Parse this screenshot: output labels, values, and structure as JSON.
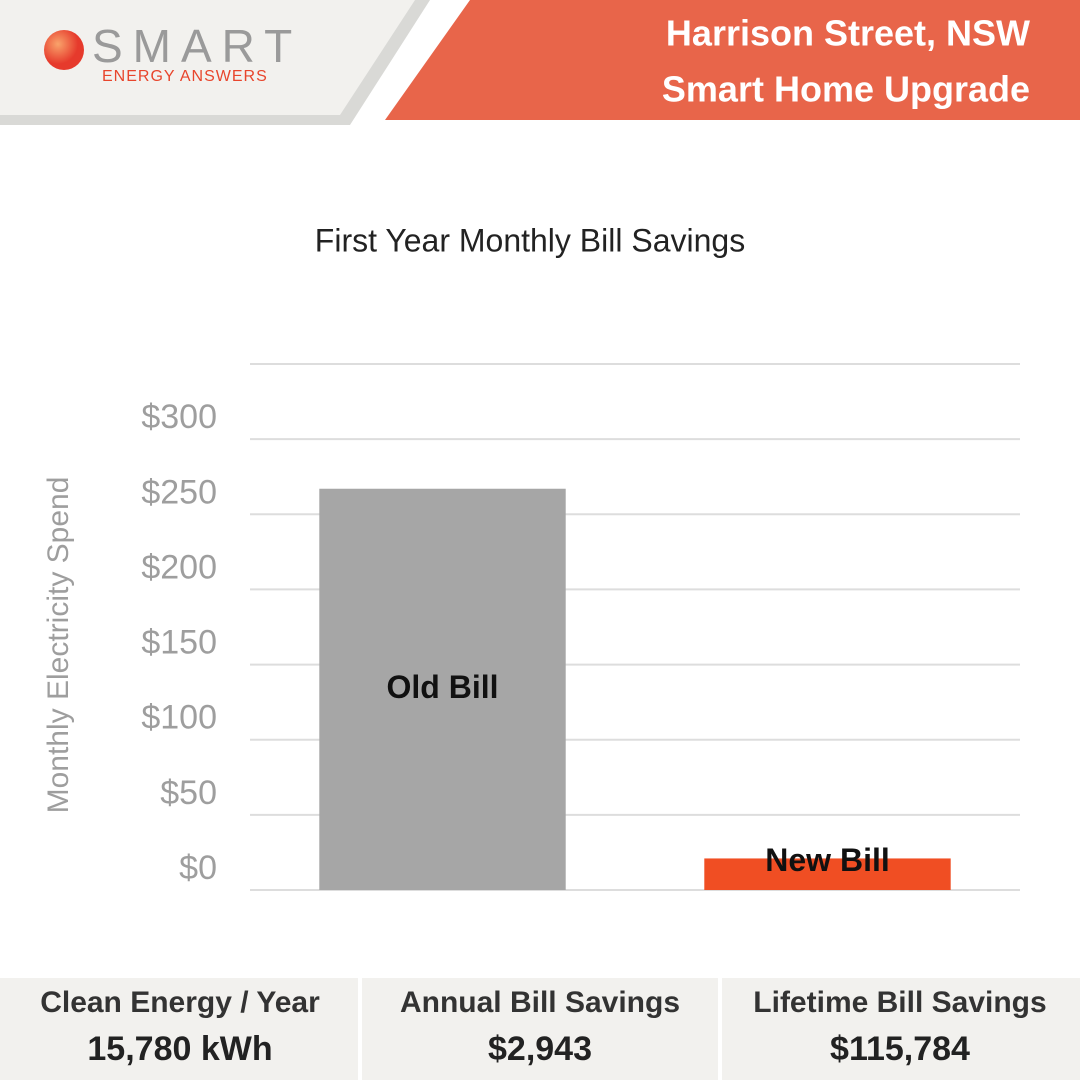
{
  "header": {
    "logo": "SMART",
    "logo_tagline": "ENERGY ANSWERS",
    "title_lines": [
      "Harrison Street, NSW",
      "Smart Home Upgrade"
    ]
  },
  "chart_data": {
    "type": "bar",
    "title": "First Year Monthly Bill Savings",
    "y_label": "Monthly Electricity Spend",
    "categories": [
      "Old Bill",
      "New Bill"
    ],
    "values": [
      267,
      21
    ],
    "series_colors": [
      "#a6a6a6",
      "#f04e23"
    ],
    "ylim": [
      0,
      350
    ],
    "yticks": [
      {
        "value": 0,
        "label": "$0"
      },
      {
        "value": 50,
        "label": "$50"
      },
      {
        "value": 100,
        "label": "$100"
      },
      {
        "value": 150,
        "label": "$150"
      },
      {
        "value": 200,
        "label": "$200"
      },
      {
        "value": 250,
        "label": "$250"
      },
      {
        "value": 300,
        "label": "$300"
      }
    ],
    "grid": true
  },
  "stats": [
    {
      "label": "Clean Energy / Year",
      "value": "15,780 kWh"
    },
    {
      "label": "Annual Bill Savings",
      "value": "$2,943"
    },
    {
      "label": "Lifetime Bill Savings",
      "value": "$115,784"
    }
  ]
}
